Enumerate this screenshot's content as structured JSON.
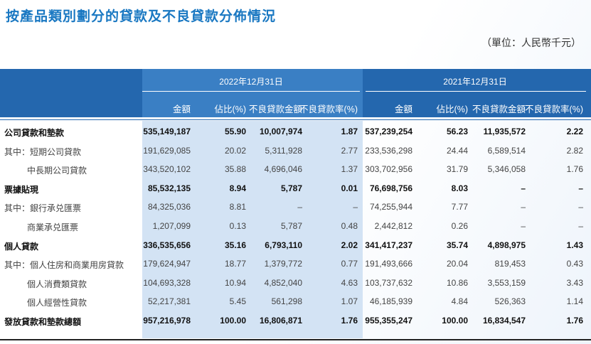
{
  "header": {
    "title": "按產品類別劃分的貸款及不良貸款分佈情況",
    "unit": "（單位：人民幣千元）"
  },
  "table": {
    "groups": [
      "2022年12月31日",
      "2021年12月31日"
    ],
    "columns": [
      "金額",
      "佔比(%)",
      "不良貸款金額",
      "不良貸款率(%)",
      "金額",
      "佔比(%)",
      "不良貸款金額",
      "不良貸款率(%)"
    ],
    "rows": [
      {
        "label": "公司貸款和墊款",
        "bold": true,
        "cells": [
          "535,149,187",
          "55.90",
          "10,007,974",
          "1.87",
          "537,239,254",
          "56.23",
          "11,935,572",
          "2.22"
        ]
      },
      {
        "label": "其中：短期公司貸款",
        "cells": [
          "191,629,085",
          "20.02",
          "5,311,928",
          "2.77",
          "233,536,298",
          "24.44",
          "6,589,514",
          "2.82"
        ]
      },
      {
        "label": "中長期公司貸款",
        "indent": true,
        "cells": [
          "343,520,102",
          "35.88",
          "4,696,046",
          "1.37",
          "303,702,956",
          "31.79",
          "5,346,058",
          "1.76"
        ]
      },
      {
        "label": "票據貼現",
        "bold": true,
        "cells": [
          "85,532,135",
          "8.94",
          "5,787",
          "0.01",
          "76,698,756",
          "8.03",
          "–",
          "–"
        ]
      },
      {
        "label": "其中：銀行承兑匯票",
        "cells": [
          "84,325,036",
          "8.81",
          "–",
          "–",
          "74,255,944",
          "7.77",
          "–",
          "–"
        ]
      },
      {
        "label": "商業承兑匯票",
        "indent": true,
        "cells": [
          "1,207,099",
          "0.13",
          "5,787",
          "0.48",
          "2,442,812",
          "0.26",
          "–",
          "–"
        ]
      },
      {
        "label": "個人貸款",
        "bold": true,
        "cells": [
          "336,535,656",
          "35.16",
          "6,793,110",
          "2.02",
          "341,417,237",
          "35.74",
          "4,898,975",
          "1.43"
        ]
      },
      {
        "label": "其中：個人住房和商業用房貸款",
        "cells": [
          "179,624,947",
          "18.77",
          "1,379,772",
          "0.77",
          "191,493,666",
          "20.04",
          "819,453",
          "0.43"
        ]
      },
      {
        "label": "個人消費類貸款",
        "indent": true,
        "cells": [
          "104,693,328",
          "10.94",
          "4,852,040",
          "4.63",
          "103,737,632",
          "10.86",
          "3,553,159",
          "3.43"
        ]
      },
      {
        "label": "個人經營性貸款",
        "indent": true,
        "cells": [
          "52,217,381",
          "5.45",
          "561,298",
          "1.07",
          "46,185,939",
          "4.84",
          "526,363",
          "1.14"
        ]
      },
      {
        "label": "發放貸款和墊款總額",
        "bold": true,
        "cells": [
          "957,216,978",
          "100.00",
          "16,806,871",
          "1.76",
          "955,355,247",
          "100.00",
          "16,834,547",
          "1.76"
        ]
      }
    ]
  }
}
